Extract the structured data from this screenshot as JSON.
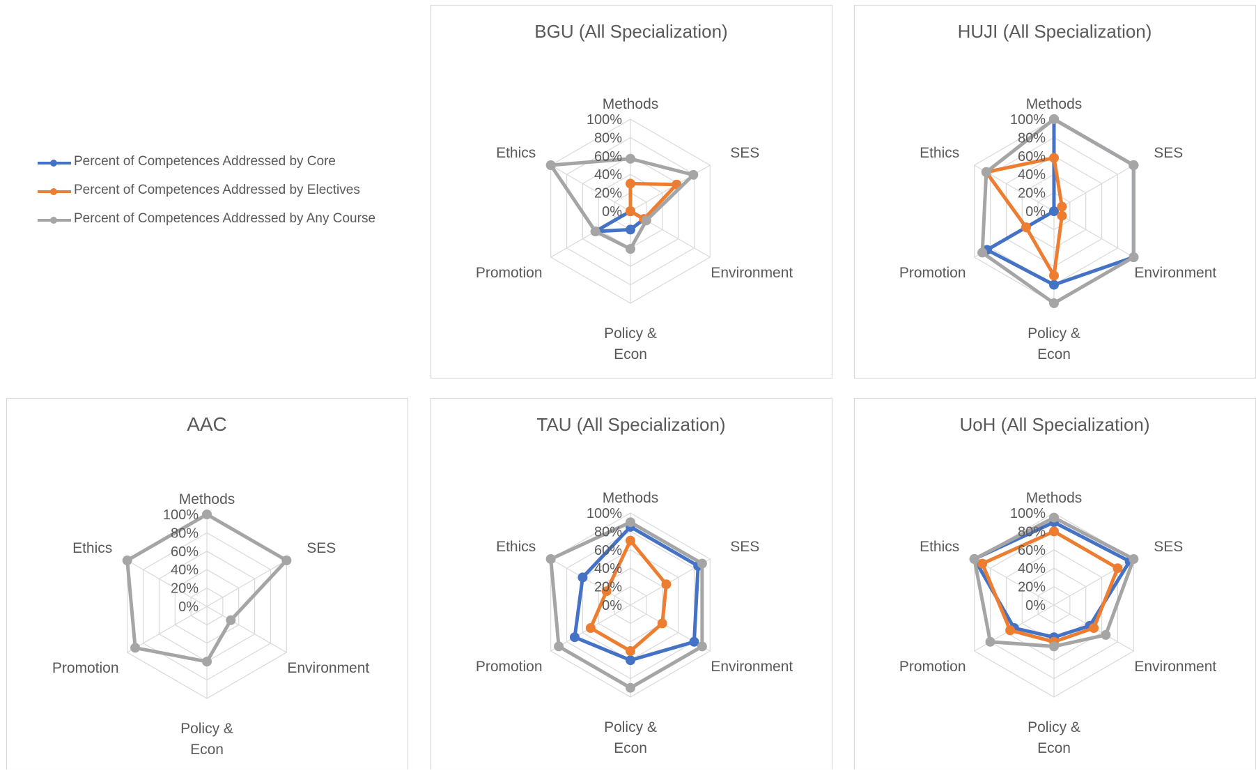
{
  "legend": [
    {
      "name": "Percent of Competences Addressed by Core",
      "color": "#4472c4"
    },
    {
      "name": "Percent of Competences Addressed by Electives",
      "color": "#ed7d31"
    },
    {
      "name": "Percent of Competences Addressed by Any Course",
      "color": "#a5a5a5"
    }
  ],
  "chart_data": [
    {
      "type": "radar",
      "title": "BGU (All Specialization)",
      "axes": [
        "Methods",
        "SES",
        "Environment",
        "Policy & Econ",
        "Promotion",
        "Ethics"
      ],
      "rlim": [
        0,
        100
      ],
      "tick_labels": [
        "0%",
        "20%",
        "40%",
        "60%",
        "80%",
        "100%"
      ],
      "series": [
        {
          "name": "Percent of Competences Addressed by Core",
          "color": "#4472c4",
          "values": [
            0,
            0,
            17,
            20,
            44,
            0
          ]
        },
        {
          "name": "Percent of Competences Addressed by Electives",
          "color": "#ed7d31",
          "values": [
            30,
            58,
            17,
            0,
            0,
            0
          ]
        },
        {
          "name": "Percent of Competences Addressed by Any Course",
          "color": "#a5a5a5",
          "values": [
            57,
            79,
            20,
            41,
            44,
            100
          ]
        }
      ]
    },
    {
      "type": "radar",
      "title": "HUJI (All Specialization)",
      "axes": [
        "Methods",
        "SES",
        "Environment",
        "Policy & Econ",
        "Promotion",
        "Ethics"
      ],
      "rlim": [
        0,
        100
      ],
      "tick_labels": [
        "0%",
        "20%",
        "40%",
        "60%",
        "80%",
        "100%"
      ],
      "series": [
        {
          "name": "Percent of Competences Addressed by Core",
          "color": "#4472c4",
          "values": [
            100,
            100,
            100,
            80,
            84,
            0
          ]
        },
        {
          "name": "Percent of Competences Addressed by Electives",
          "color": "#ed7d31",
          "values": [
            58,
            10,
            10,
            70,
            35,
            85
          ]
        },
        {
          "name": "Percent of Competences Addressed by Any Course",
          "color": "#a5a5a5",
          "values": [
            100,
            100,
            100,
            100,
            90,
            85
          ]
        }
      ]
    },
    {
      "type": "radar",
      "title": "AAC",
      "axes": [
        "Methods",
        "SES",
        "Environment",
        "Policy & Econ",
        "Promotion",
        "Ethics"
      ],
      "rlim": [
        0,
        100
      ],
      "tick_labels": [
        "0%",
        "20%",
        "40%",
        "60%",
        "80%",
        "100%"
      ],
      "series": [
        {
          "name": "Percent of Competences Addressed by Any Course",
          "color": "#a5a5a5",
          "values": [
            100,
            100,
            30,
            60,
            90,
            100
          ]
        }
      ]
    },
    {
      "type": "radar",
      "title": "TAU (All Specialization)",
      "axes": [
        "Methods",
        "SES",
        "Environment",
        "Policy & Econ",
        "Promotion",
        "Ethics"
      ],
      "rlim": [
        0,
        100
      ],
      "tick_labels": [
        "0%",
        "20%",
        "40%",
        "60%",
        "80%",
        "100%"
      ],
      "series": [
        {
          "name": "Percent of Competences Addressed by Core",
          "color": "#4472c4",
          "values": [
            85,
            85,
            80,
            60,
            70,
            60
          ]
        },
        {
          "name": "Percent of Competences Addressed by Electives",
          "color": "#ed7d31",
          "values": [
            70,
            45,
            40,
            50,
            50,
            30
          ]
        },
        {
          "name": "Percent of Competences Addressed by Any Course",
          "color": "#a5a5a5",
          "values": [
            90,
            90,
            90,
            90,
            90,
            100
          ]
        }
      ]
    },
    {
      "type": "radar",
      "title": "UoH (All Specialization)",
      "axes": [
        "Methods",
        "SES",
        "Environment",
        "Policy & Econ",
        "Promotion",
        "Ethics"
      ],
      "rlim": [
        0,
        100
      ],
      "tick_labels": [
        "0%",
        "20%",
        "40%",
        "60%",
        "80%",
        "100%"
      ],
      "series": [
        {
          "name": "Percent of Competences Addressed by Core",
          "color": "#4472c4",
          "values": [
            90,
            95,
            45,
            35,
            50,
            100
          ]
        },
        {
          "name": "Percent of Competences Addressed by Electives",
          "color": "#ed7d31",
          "values": [
            80,
            80,
            50,
            40,
            55,
            90
          ]
        },
        {
          "name": "Percent of Competences Addressed by Any Course",
          "color": "#a5a5a5",
          "values": [
            95,
            100,
            65,
            45,
            80,
            100
          ]
        }
      ]
    }
  ]
}
